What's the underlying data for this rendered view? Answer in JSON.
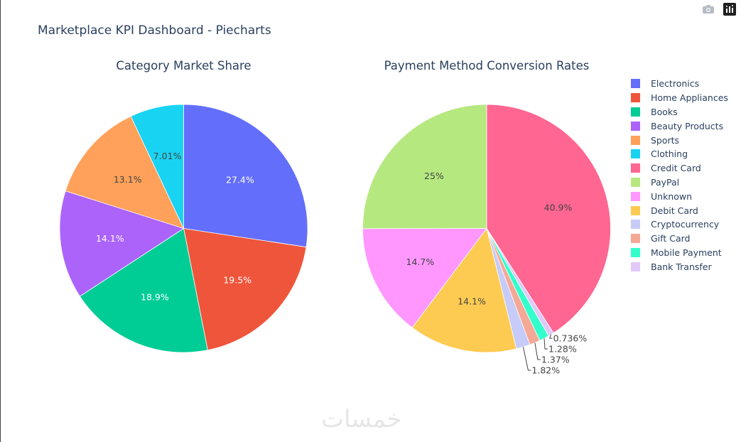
{
  "title": "Marketplace KPI Dashboard - Piecharts",
  "watermark": "خمسات",
  "modebar": [
    {
      "name": "download-plot",
      "icon": "camera-icon"
    },
    {
      "name": "produced-with-plotly",
      "icon": "plotly-logo-icon"
    }
  ],
  "chart_data": [
    {
      "type": "pie",
      "title": "Category Market Share",
      "labels": [
        "Electronics",
        "Home Appliances",
        "Books",
        "Beauty Products",
        "Sports",
        "Clothing"
      ],
      "values": [
        27.4,
        19.5,
        18.9,
        14.1,
        13.1,
        7.01
      ],
      "text_labels": [
        "27.4%",
        "19.5%",
        "18.9%",
        "14.1%",
        "13.1%",
        "7.01%"
      ],
      "sort_order": [
        "Electronics",
        "Home Appliances",
        "Books",
        "Beauty Products",
        "Sports",
        "Clothing"
      ],
      "direction": "clockwise from top",
      "colors": [
        "#636efa",
        "#ef553b",
        "#00cc96",
        "#ab63fa",
        "#ffa15a",
        "#19d3f3"
      ]
    },
    {
      "type": "pie",
      "title": "Payment Method Conversion Rates",
      "labels": [
        "Credit Card",
        "PayPal",
        "Unknown",
        "Debit Card",
        "Cryptocurrency",
        "Gift Card",
        "Mobile Payment",
        "Bank Transfer"
      ],
      "values": [
        40.9,
        25,
        14.7,
        14.1,
        1.82,
        1.37,
        1.28,
        0.736
      ],
      "text_labels": [
        "40.9%",
        "25%",
        "14.7%",
        "14.1%",
        "1.82%",
        "1.37%",
        "1.28%",
        "0.736%"
      ],
      "sort_order": [
        "Credit Card",
        "Bank Transfer",
        "Mobile Payment",
        "Gift Card",
        "Cryptocurrency",
        "Debit Card",
        "Unknown",
        "PayPal"
      ],
      "direction": "clockwise from top",
      "colors": [
        "#ff6692",
        "#b6e880",
        "#ff97ff",
        "#fecb52",
        "#c6cbf7",
        "#f4a896",
        "#33ffcc",
        "#e0c8f8"
      ]
    }
  ],
  "legend": {
    "position": "right",
    "items": [
      {
        "label": "Electronics",
        "color": "#636efa"
      },
      {
        "label": "Home Appliances",
        "color": "#ef553b"
      },
      {
        "label": "Books",
        "color": "#00cc96"
      },
      {
        "label": "Beauty Products",
        "color": "#ab63fa"
      },
      {
        "label": "Sports",
        "color": "#ffa15a"
      },
      {
        "label": "Clothing",
        "color": "#19d3f3"
      },
      {
        "label": "Credit Card",
        "color": "#ff6692"
      },
      {
        "label": "PayPal",
        "color": "#b6e880"
      },
      {
        "label": "Unknown",
        "color": "#ff97ff"
      },
      {
        "label": "Debit Card",
        "color": "#fecb52"
      },
      {
        "label": "Cryptocurrency",
        "color": "#c6cbf7"
      },
      {
        "label": "Gift Card",
        "color": "#f4a896"
      },
      {
        "label": "Mobile Payment",
        "color": "#33ffcc"
      },
      {
        "label": "Bank Transfer",
        "color": "#e0c8f8"
      }
    ]
  }
}
